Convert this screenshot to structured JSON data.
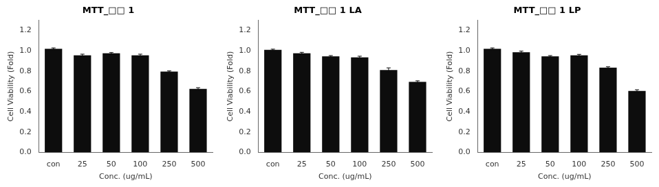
{
  "chart_data": [
    {
      "type": "bar",
      "title": "MTT_□□ 1",
      "categories": [
        "con",
        "25",
        "50",
        "100",
        "250",
        "500"
      ],
      "values": [
        1.02,
        0.955,
        0.975,
        0.955,
        0.795,
        0.625
      ],
      "errors": [
        0.008,
        0.012,
        0.008,
        0.012,
        0.008,
        0.012
      ],
      "xlabel": "Conc. (ug/mL)",
      "ylabel": "Cell Viability (Fold)",
      "ylim": [
        0,
        1.3
      ],
      "yticks": [
        {
          "value": 0,
          "label": "0.0"
        },
        0.2,
        0.4,
        0.6,
        0.8,
        {
          "value": 1,
          "label": "1.0"
        },
        1.2
      ],
      "color": "#0d0d0d",
      "grid": false
    },
    {
      "type": "bar",
      "title": "MTT_□□ 1 LA",
      "categories": [
        "con",
        "25",
        "50",
        "100",
        "250",
        "500"
      ],
      "values": [
        1.01,
        0.975,
        0.945,
        0.935,
        0.81,
        0.695
      ],
      "errors": [
        0.006,
        0.01,
        0.008,
        0.012,
        0.022,
        0.01
      ],
      "xlabel": "Conc. (ug/mL)",
      "ylabel": "Cell Viability (Fold)",
      "ylim": [
        0,
        1.3
      ],
      "yticks": [
        {
          "value": 0,
          "label": "0.0"
        },
        0.2,
        0.4,
        0.6,
        0.8,
        {
          "value": 1,
          "label": "1.0"
        },
        1.2
      ],
      "color": "#0d0d0d",
      "grid": false
    },
    {
      "type": "bar",
      "title": "MTT_□□ 1 LP",
      "categories": [
        "con",
        "25",
        "50",
        "100",
        "250",
        "500"
      ],
      "values": [
        1.02,
        0.985,
        0.945,
        0.955,
        0.835,
        0.605
      ],
      "errors": [
        0.008,
        0.012,
        0.008,
        0.01,
        0.008,
        0.012
      ],
      "xlabel": "Conc. (ug/mL)",
      "ylabel": "Cell Viability (Fold)",
      "ylim": [
        0,
        1.3
      ],
      "yticks": [
        {
          "value": 0,
          "label": "0.0"
        },
        0.2,
        0.4,
        0.6,
        0.8,
        {
          "value": 1,
          "label": "1.0"
        },
        1.2
      ],
      "color": "#0d0d0d",
      "grid": false
    }
  ]
}
